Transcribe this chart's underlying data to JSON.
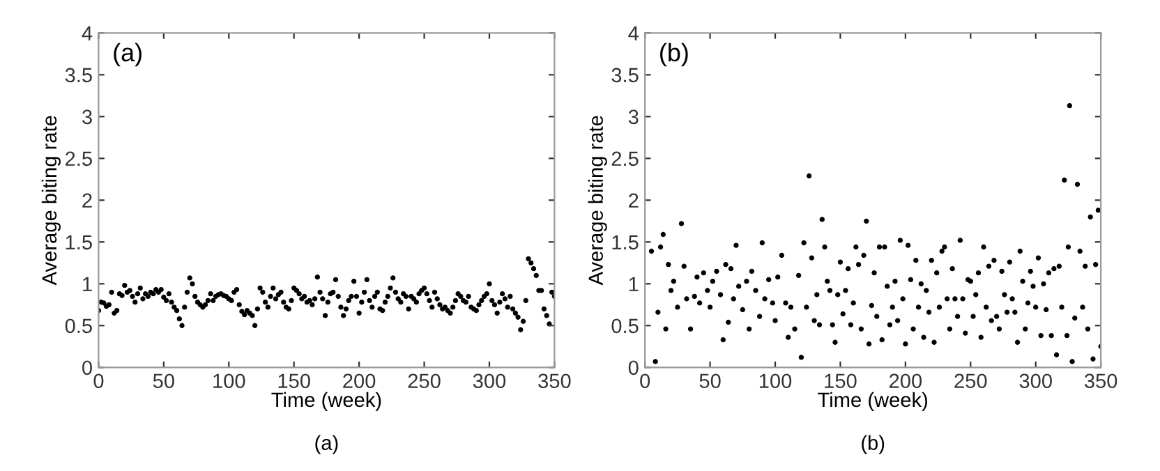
{
  "chart_data": [
    {
      "type": "scatter",
      "xlabel": "Time (week)",
      "ylabel": "Average biting rate",
      "annotations": [
        "(a)",
        "(a)"
      ],
      "marker": "circle",
      "xlim": [
        0,
        350
      ],
      "xticks": [
        0,
        50,
        100,
        150,
        200,
        250,
        300,
        350
      ],
      "ylim": [
        0,
        4
      ],
      "yticks": [
        0,
        0.5,
        1,
        1.5,
        2,
        2.5,
        3,
        3.5,
        4
      ],
      "series": [
        {
          "color": "#000000",
          "x": [
            0,
            2,
            4,
            6,
            8,
            10,
            12,
            14,
            16,
            18,
            20,
            22,
            24,
            26,
            28,
            30,
            32,
            34,
            36,
            38,
            40,
            42,
            44,
            46,
            48,
            50,
            52,
            54,
            56,
            58,
            60,
            62,
            64,
            66,
            68,
            70,
            72,
            74,
            76,
            78,
            80,
            82,
            84,
            86,
            88,
            90,
            92,
            94,
            96,
            98,
            100,
            102,
            104,
            106,
            108,
            110,
            112,
            114,
            116,
            118,
            120,
            122,
            124,
            126,
            128,
            130,
            132,
            134,
            136,
            138,
            140,
            142,
            144,
            146,
            148,
            150,
            152,
            154,
            156,
            158,
            160,
            162,
            164,
            166,
            168,
            170,
            172,
            174,
            176,
            178,
            180,
            182,
            184,
            186,
            188,
            190,
            192,
            194,
            196,
            198,
            200,
            202,
            204,
            206,
            208,
            210,
            212,
            214,
            216,
            218,
            220,
            222,
            224,
            226,
            228,
            230,
            232,
            234,
            236,
            238,
            240,
            242,
            244,
            246,
            248,
            250,
            252,
            254,
            256,
            258,
            260,
            262,
            264,
            266,
            268,
            270,
            272,
            274,
            276,
            278,
            280,
            282,
            284,
            286,
            288,
            290,
            292,
            294,
            296,
            298,
            300,
            302,
            304,
            306,
            308,
            310,
            312,
            314,
            316,
            318,
            320,
            322,
            324,
            326,
            328,
            330,
            332,
            334,
            336,
            338,
            340,
            342,
            344,
            346,
            348,
            350
          ],
          "values": [
            0.68,
            0.78,
            0.77,
            0.73,
            0.75,
            0.9,
            0.65,
            0.68,
            0.88,
            0.86,
            0.98,
            0.9,
            0.92,
            0.85,
            0.78,
            0.88,
            0.95,
            0.82,
            0.88,
            0.85,
            0.9,
            0.88,
            0.93,
            0.9,
            0.93,
            0.84,
            0.8,
            0.88,
            0.78,
            0.72,
            0.68,
            0.58,
            0.5,
            0.72,
            0.9,
            1.07,
            1.0,
            0.85,
            0.78,
            0.75,
            0.72,
            0.75,
            0.8,
            0.88,
            0.8,
            0.85,
            0.87,
            0.88,
            0.86,
            0.85,
            0.82,
            0.8,
            0.9,
            0.93,
            0.75,
            0.67,
            0.63,
            0.68,
            0.65,
            0.62,
            0.5,
            0.7,
            0.95,
            0.9,
            0.78,
            0.72,
            0.85,
            0.95,
            0.82,
            0.87,
            0.9,
            0.78,
            0.72,
            0.7,
            0.8,
            0.95,
            0.92,
            0.88,
            0.82,
            0.85,
            0.78,
            0.8,
            0.75,
            0.82,
            1.08,
            0.9,
            0.82,
            0.62,
            0.78,
            0.88,
            0.9,
            1.05,
            0.85,
            0.72,
            0.62,
            0.7,
            0.8,
            0.85,
            1.03,
            0.85,
            0.65,
            0.78,
            0.9,
            1.05,
            0.8,
            0.72,
            0.85,
            0.9,
            0.7,
            0.68,
            0.78,
            0.85,
            0.95,
            1.07,
            0.9,
            0.82,
            0.78,
            0.88,
            0.85,
            0.7,
            0.85,
            0.82,
            0.78,
            0.88,
            0.92,
            0.95,
            0.88,
            0.8,
            0.72,
            0.9,
            0.82,
            0.75,
            0.7,
            0.72,
            0.68,
            0.65,
            0.72,
            0.8,
            0.88,
            0.85,
            0.8,
            0.78,
            0.85,
            0.72,
            0.7,
            0.68,
            0.75,
            0.8,
            0.85,
            0.88,
            1.0,
            0.8,
            0.75,
            0.65,
            0.78,
            0.88,
            0.82,
            0.72,
            0.85,
            0.7,
            0.65,
            0.6,
            0.45,
            0.55,
            0.8,
            1.3,
            1.25,
            1.18,
            1.1,
            0.92,
            0.92,
            0.7,
            0.62,
            0.52,
            0.9,
            0.85
          ]
        }
      ]
    },
    {
      "type": "scatter",
      "xlabel": "Time (week)",
      "ylabel": "Average biting rate",
      "annotations": [
        "(b)",
        "(b)"
      ],
      "marker": "circle",
      "xlim": [
        0,
        350
      ],
      "xticks": [
        0,
        50,
        100,
        150,
        200,
        250,
        300,
        350
      ],
      "ylim": [
        0,
        4
      ],
      "yticks": [
        0,
        0.5,
        1,
        1.5,
        2,
        2.5,
        3,
        3.5,
        4
      ],
      "series": [
        {
          "color": "#000000",
          "x": [
            5,
            8,
            10,
            12,
            14,
            16,
            18,
            20,
            22,
            25,
            28,
            30,
            32,
            35,
            38,
            40,
            42,
            45,
            48,
            50,
            52,
            55,
            58,
            60,
            62,
            64,
            66,
            68,
            70,
            72,
            75,
            78,
            80,
            82,
            85,
            88,
            90,
            92,
            95,
            98,
            100,
            102,
            105,
            108,
            110,
            112,
            115,
            118,
            120,
            122,
            124,
            126,
            128,
            130,
            132,
            134,
            136,
            138,
            140,
            142,
            144,
            146,
            148,
            150,
            152,
            154,
            156,
            158,
            160,
            162,
            164,
            166,
            168,
            170,
            172,
            174,
            176,
            178,
            180,
            182,
            184,
            186,
            188,
            190,
            192,
            194,
            196,
            198,
            200,
            202,
            204,
            206,
            208,
            210,
            212,
            214,
            216,
            218,
            220,
            222,
            224,
            226,
            228,
            230,
            232,
            234,
            236,
            238,
            240,
            242,
            244,
            246,
            248,
            250,
            252,
            254,
            256,
            258,
            260,
            262,
            264,
            266,
            268,
            270,
            272,
            274,
            276,
            278,
            280,
            282,
            284,
            286,
            288,
            290,
            292,
            294,
            296,
            298,
            300,
            302,
            304,
            306,
            308,
            310,
            312,
            314,
            316,
            318,
            320,
            322,
            324,
            325,
            326,
            328,
            330,
            332,
            334,
            336,
            338,
            340,
            342,
            344,
            346,
            348,
            350
          ],
          "values": [
            1.39,
            0.07,
            0.66,
            1.44,
            1.59,
            0.46,
            1.23,
            0.92,
            1.03,
            0.72,
            1.72,
            1.21,
            0.82,
            0.46,
            0.85,
            1.08,
            0.77,
            1.13,
            0.92,
            0.72,
            1.03,
            1.15,
            0.87,
            0.33,
            1.23,
            0.54,
            1.18,
            0.82,
            1.46,
            0.97,
            0.69,
            1.03,
            0.46,
            1.15,
            0.92,
            0.61,
            1.49,
            0.82,
            1.05,
            0.77,
            0.56,
            1.08,
            1.34,
            0.77,
            0.36,
            0.72,
            0.46,
            1.1,
            0.12,
            1.49,
            0.72,
            2.29,
            1.31,
            0.56,
            0.87,
            0.51,
            1.77,
            1.44,
            1.03,
            0.92,
            0.51,
            0.3,
            0.87,
            1.26,
            0.64,
            0.92,
            1.18,
            0.51,
            0.77,
            1.44,
            1.23,
            0.46,
            1.34,
            1.75,
            0.28,
            0.74,
            1.13,
            0.61,
            1.44,
            0.33,
            1.44,
            0.97,
            0.51,
            0.72,
            1.03,
            0.56,
            1.52,
            0.82,
            0.28,
            1.46,
            1.05,
            0.46,
            1.28,
            0.72,
            1.0,
            0.36,
            0.92,
            0.66,
            1.28,
            0.3,
            1.13,
            0.72,
            1.39,
            1.44,
            0.82,
            0.46,
            1.18,
            0.82,
            0.61,
            1.52,
            0.82,
            0.41,
            1.05,
            1.03,
            0.61,
            0.87,
            1.13,
            0.36,
            1.44,
            0.72,
            1.21,
            0.56,
            1.28,
            0.61,
            0.46,
            1.15,
            0.87,
            0.66,
            1.26,
            0.82,
            0.66,
            0.3,
            1.39,
            1.03,
            0.46,
            0.77,
            1.15,
            0.97,
            0.72,
            1.31,
            0.38,
            1.0,
            0.69,
            1.13,
            0.38,
            1.18,
            0.15,
            1.21,
            0.72,
            2.24,
            0.38,
            1.44,
            3.13,
            0.07,
            0.59,
            2.19,
            1.39,
            0.72,
            1.21,
            0.46,
            1.8,
            0.1,
            1.23,
            1.88,
            0.25
          ]
        }
      ]
    }
  ]
}
